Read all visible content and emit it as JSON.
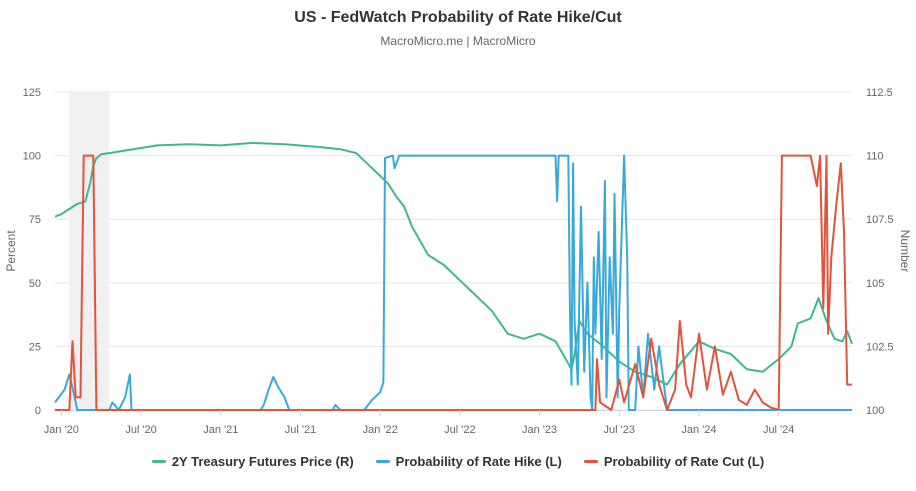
{
  "chart_data": {
    "type": "line",
    "title": "US - FedWatch Probability of Rate Hike/Cut",
    "subtitle": "MacroMicro.me | MacroMicro",
    "y_left": {
      "label": "Percent",
      "range": [
        0,
        125
      ],
      "ticks": [
        "0",
        "25",
        "50",
        "75",
        "100",
        "125"
      ]
    },
    "y_right": {
      "label": "Number",
      "range": [
        100,
        112.5
      ],
      "ticks": [
        "100",
        "102.5",
        "105",
        "107.5",
        "110",
        "112.5"
      ]
    },
    "x_range": [
      2019.96,
      2024.96
    ],
    "x_ticks": [
      {
        "label": "Jan '20",
        "t": 2020.0
      },
      {
        "label": "Jul '20",
        "t": 2020.5
      },
      {
        "label": "Jan '21",
        "t": 2021.0
      },
      {
        "label": "Jul '21",
        "t": 2021.5
      },
      {
        "label": "Jan '22",
        "t": 2022.0
      },
      {
        "label": "Jul '22",
        "t": 2022.5
      },
      {
        "label": "Jan '23",
        "t": 2023.0
      },
      {
        "label": "Jul '23",
        "t": 2023.5
      },
      {
        "label": "Jan '24",
        "t": 2024.0
      },
      {
        "label": "Jul '24",
        "t": 2024.5
      }
    ],
    "recession_band": [
      2020.05,
      2020.3
    ],
    "series": [
      {
        "name": "2Y Treasury Futures Price (R)",
        "axis": "right",
        "color": "#3db892",
        "points": [
          [
            2019.96,
            107.6
          ],
          [
            2020.0,
            107.7
          ],
          [
            2020.05,
            107.9
          ],
          [
            2020.1,
            108.1
          ],
          [
            2020.15,
            108.2
          ],
          [
            2020.18,
            108.9
          ],
          [
            2020.2,
            109.6
          ],
          [
            2020.22,
            109.9
          ],
          [
            2020.25,
            110.05
          ],
          [
            2020.3,
            110.1
          ],
          [
            2020.4,
            110.2
          ],
          [
            2020.5,
            110.3
          ],
          [
            2020.6,
            110.4
          ],
          [
            2020.8,
            110.45
          ],
          [
            2021.0,
            110.4
          ],
          [
            2021.2,
            110.5
          ],
          [
            2021.4,
            110.45
          ],
          [
            2021.6,
            110.35
          ],
          [
            2021.75,
            110.25
          ],
          [
            2021.85,
            110.1
          ],
          [
            2021.9,
            109.8
          ],
          [
            2021.95,
            109.5
          ],
          [
            2022.0,
            109.2
          ],
          [
            2022.05,
            108.9
          ],
          [
            2022.1,
            108.4
          ],
          [
            2022.15,
            108.0
          ],
          [
            2022.2,
            107.2
          ],
          [
            2022.3,
            106.1
          ],
          [
            2022.4,
            105.7
          ],
          [
            2022.5,
            105.1
          ],
          [
            2022.6,
            104.5
          ],
          [
            2022.7,
            103.9
          ],
          [
            2022.8,
            103.0
          ],
          [
            2022.9,
            102.8
          ],
          [
            2023.0,
            103.0
          ],
          [
            2023.1,
            102.7
          ],
          [
            2023.2,
            101.6
          ],
          [
            2023.22,
            102.2
          ],
          [
            2023.25,
            103.5
          ],
          [
            2023.3,
            103.0
          ],
          [
            2023.4,
            102.5
          ],
          [
            2023.5,
            101.9
          ],
          [
            2023.6,
            101.5
          ],
          [
            2023.7,
            101.3
          ],
          [
            2023.8,
            101.0
          ],
          [
            2023.88,
            101.8
          ],
          [
            2024.0,
            102.7
          ],
          [
            2024.1,
            102.4
          ],
          [
            2024.2,
            102.2
          ],
          [
            2024.3,
            101.6
          ],
          [
            2024.4,
            101.5
          ],
          [
            2024.5,
            102.0
          ],
          [
            2024.58,
            102.5
          ],
          [
            2024.62,
            103.4
          ],
          [
            2024.7,
            103.6
          ],
          [
            2024.75,
            104.4
          ],
          [
            2024.8,
            103.5
          ],
          [
            2024.85,
            102.8
          ],
          [
            2024.9,
            102.7
          ],
          [
            2024.93,
            103.1
          ],
          [
            2024.96,
            102.6
          ]
        ]
      },
      {
        "name": "Probability of Rate Hike (L)",
        "axis": "left",
        "color": "#3aa9d9",
        "points": [
          [
            2019.96,
            3
          ],
          [
            2020.02,
            8
          ],
          [
            2020.05,
            14
          ],
          [
            2020.08,
            6
          ],
          [
            2020.1,
            0
          ],
          [
            2020.18,
            0
          ],
          [
            2020.2,
            0
          ],
          [
            2020.3,
            0
          ],
          [
            2020.32,
            3
          ],
          [
            2020.36,
            0
          ],
          [
            2020.4,
            5
          ],
          [
            2020.43,
            14
          ],
          [
            2020.44,
            0
          ],
          [
            2020.6,
            0
          ],
          [
            2021.0,
            0
          ],
          [
            2021.25,
            0
          ],
          [
            2021.27,
            2
          ],
          [
            2021.3,
            8
          ],
          [
            2021.33,
            13
          ],
          [
            2021.36,
            9
          ],
          [
            2021.4,
            5
          ],
          [
            2021.43,
            0
          ],
          [
            2021.7,
            0
          ],
          [
            2021.72,
            2
          ],
          [
            2021.75,
            0
          ],
          [
            2021.9,
            0
          ],
          [
            2021.95,
            4
          ],
          [
            2022.0,
            7
          ],
          [
            2022.02,
            11
          ],
          [
            2022.03,
            99
          ],
          [
            2022.08,
            100
          ],
          [
            2022.09,
            95
          ],
          [
            2022.12,
            100
          ],
          [
            2022.5,
            100
          ],
          [
            2023.1,
            100
          ],
          [
            2023.11,
            82
          ],
          [
            2023.12,
            100
          ],
          [
            2023.18,
            100
          ],
          [
            2023.19,
            40
          ],
          [
            2023.2,
            10
          ],
          [
            2023.21,
            97
          ],
          [
            2023.22,
            35
          ],
          [
            2023.24,
            10
          ],
          [
            2023.26,
            80
          ],
          [
            2023.28,
            15
          ],
          [
            2023.3,
            50
          ],
          [
            2023.32,
            5
          ],
          [
            2023.33,
            0
          ],
          [
            2023.34,
            60
          ],
          [
            2023.35,
            30
          ],
          [
            2023.37,
            70
          ],
          [
            2023.39,
            20
          ],
          [
            2023.41,
            90
          ],
          [
            2023.42,
            5
          ],
          [
            2023.44,
            60
          ],
          [
            2023.46,
            30
          ],
          [
            2023.47,
            85
          ],
          [
            2023.49,
            5
          ],
          [
            2023.5,
            40
          ],
          [
            2023.53,
            100
          ],
          [
            2023.55,
            60
          ],
          [
            2023.56,
            0
          ],
          [
            2023.6,
            0
          ],
          [
            2023.62,
            25
          ],
          [
            2023.65,
            5
          ],
          [
            2023.68,
            30
          ],
          [
            2023.72,
            8
          ],
          [
            2023.75,
            25
          ],
          [
            2023.8,
            0
          ],
          [
            2024.2,
            0
          ],
          [
            2024.96,
            0
          ]
        ]
      },
      {
        "name": "Probability of Rate Cut (L)",
        "axis": "left",
        "color": "#e0533c",
        "points": [
          [
            2019.96,
            0
          ],
          [
            2020.05,
            0
          ],
          [
            2020.07,
            27
          ],
          [
            2020.09,
            5
          ],
          [
            2020.12,
            5
          ],
          [
            2020.14,
            100
          ],
          [
            2020.2,
            100
          ],
          [
            2020.22,
            0
          ],
          [
            2020.5,
            0
          ],
          [
            2021.0,
            0
          ],
          [
            2022.0,
            0
          ],
          [
            2023.0,
            0
          ],
          [
            2023.35,
            0
          ],
          [
            2023.36,
            20
          ],
          [
            2023.38,
            3
          ],
          [
            2023.45,
            0
          ],
          [
            2023.5,
            12
          ],
          [
            2023.53,
            3
          ],
          [
            2023.6,
            18
          ],
          [
            2023.65,
            5
          ],
          [
            2023.7,
            28
          ],
          [
            2023.75,
            10
          ],
          [
            2023.8,
            0
          ],
          [
            2023.85,
            8
          ],
          [
            2023.88,
            35
          ],
          [
            2023.92,
            10
          ],
          [
            2023.95,
            5
          ],
          [
            2024.0,
            30
          ],
          [
            2024.05,
            8
          ],
          [
            2024.1,
            25
          ],
          [
            2024.15,
            6
          ],
          [
            2024.2,
            15
          ],
          [
            2024.25,
            4
          ],
          [
            2024.3,
            2
          ],
          [
            2024.35,
            8
          ],
          [
            2024.4,
            3
          ],
          [
            2024.45,
            1
          ],
          [
            2024.5,
            0
          ],
          [
            2024.52,
            100
          ],
          [
            2024.6,
            100
          ],
          [
            2024.7,
            100
          ],
          [
            2024.74,
            88
          ],
          [
            2024.76,
            100
          ],
          [
            2024.78,
            40
          ],
          [
            2024.8,
            100
          ],
          [
            2024.81,
            30
          ],
          [
            2024.83,
            60
          ],
          [
            2024.86,
            80
          ],
          [
            2024.89,
            97
          ],
          [
            2024.91,
            70
          ],
          [
            2024.93,
            10
          ],
          [
            2024.96,
            10
          ]
        ]
      }
    ]
  }
}
